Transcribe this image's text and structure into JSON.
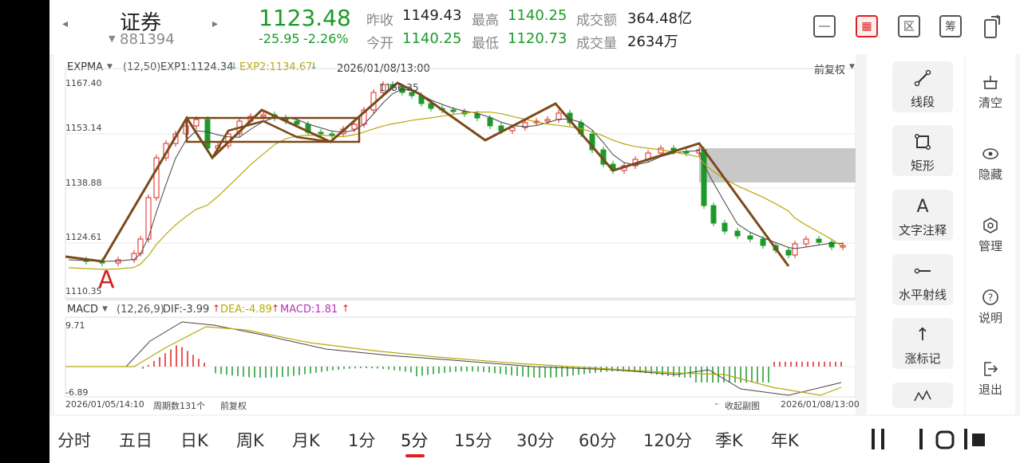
{
  "stock": {
    "name": "证券",
    "code": "881394",
    "price": "1123.48",
    "change": "-25.95",
    "change_pct": "-2.26%"
  },
  "quote": {
    "prev_close_label": "昨收",
    "prev_close": "1149.43",
    "high_label": "最高",
    "high": "1140.25",
    "amount_label": "成交额",
    "amount": "364.48亿",
    "open_label": "今开",
    "open": "1140.25",
    "low_label": "最低",
    "low": "1120.73",
    "volume_label": "成交量",
    "volume": "2634万"
  },
  "colors": {
    "up": "#e02020",
    "down": "#1b9a2a",
    "ma_dark": "#444444",
    "ma_gold": "#b8a80a",
    "drawing": "#7a4a1a"
  },
  "icons": [
    "minus-square-icon",
    "kline-draw-icon",
    "zone-icon",
    "calc-icon",
    "rotate-screen-icon"
  ],
  "main_chart": {
    "indicator": "EXPMA",
    "params": "(12,50)",
    "exp1": "EXP1:1124.34",
    "exp2": "EXP2:1134.67",
    "cursor_time": "2026/01/08/13:00",
    "adjust": "前复权",
    "price_labels": [
      "1167.40",
      "1153.14",
      "1138.88",
      "1124.61",
      "1110.35"
    ],
    "peak_label": "1166.35",
    "annotation": "A"
  },
  "macd": {
    "indicator": "MACD",
    "params": "(12,26,9)",
    "dif": "DIF:-3.99",
    "dea": "DEA:-4.89",
    "macd": "MACD:1.81",
    "ymax": "9.71",
    "ymin": "-6.89"
  },
  "footer": {
    "start": "2026/01/05/14:10",
    "count": "周期数131个",
    "adjust": "前复权",
    "collapse": "收起副图",
    "end": "2026/01/08/13:00"
  },
  "tools": [
    {
      "label": "线段",
      "icon": "line-segment-icon"
    },
    {
      "label": "矩形",
      "icon": "rectangle-icon"
    },
    {
      "label": "文字注释",
      "icon": "text-annotation-icon"
    },
    {
      "label": "水平射线",
      "icon": "horizontal-ray-icon"
    },
    {
      "label": "涨标记",
      "icon": "up-mark-icon"
    }
  ],
  "side": [
    {
      "label": "清空",
      "icon": "clear-icon"
    },
    {
      "label": "隐藏",
      "icon": "hide-eye-icon"
    },
    {
      "label": "管理",
      "icon": "manage-icon"
    },
    {
      "label": "说明",
      "icon": "help-icon"
    },
    {
      "label": "退出",
      "icon": "exit-icon"
    }
  ],
  "tabs": [
    "分时",
    "五日",
    "日K",
    "周K",
    "月K",
    "1分",
    "5分",
    "15分",
    "30分",
    "60分",
    "120分",
    "季K",
    "年K"
  ],
  "selected_tab": "5分"
}
